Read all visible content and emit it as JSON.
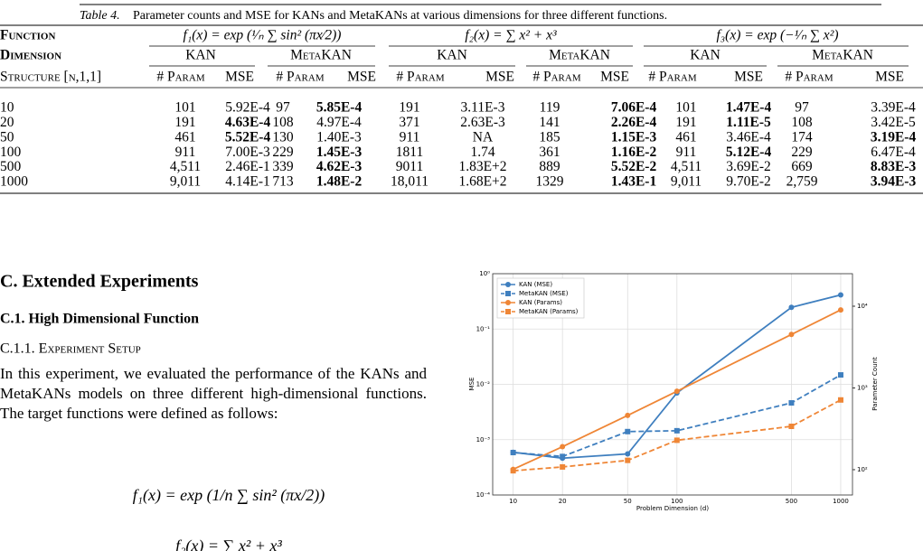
{
  "table": {
    "caption_label": "Table 4.",
    "caption": "Parameter counts and MSE for KANs and MetaKANs at various dimensions for three different functions.",
    "header_functions": [
      "Function",
      "f₁(x) = exp (¹⁄ₙ ∑ sin² (πx⁄2))",
      "f₂(x) = ∑ x² + x³",
      "f₃(x) = exp (−¹⁄ₙ ∑ x²)"
    ],
    "header_models": [
      "Dimension",
      "KAN",
      "MetaKAN",
      "KAN",
      "MetaKAN",
      "KAN",
      "MetaKAN"
    ],
    "header_columns": [
      "Structure [n,1,1]",
      "# Param",
      "MSE",
      "# Param",
      "MSE",
      "# Param",
      "MSE",
      "# Param",
      "MSE",
      "# Param",
      "MSE",
      "# Param",
      "MSE"
    ],
    "rows": [
      [
        "10",
        "101",
        "5.92E-4",
        "97",
        "5.85E-4",
        "191",
        "3.11E-3",
        "119",
        "7.06E-4",
        "101",
        "1.47E-4",
        "97",
        "3.39E-4"
      ],
      [
        "20",
        "191",
        "4.63E-4",
        "108",
        "4.97E-4",
        "371",
        "2.63E-3",
        "141",
        "2.26E-4",
        "191",
        "1.11E-5",
        "108",
        "3.42E-5"
      ],
      [
        "50",
        "461",
        "5.52E-4",
        "130",
        "1.40E-3",
        "911",
        "NA",
        "185",
        "1.15E-3",
        "461",
        "3.46E-4",
        "174",
        "3.19E-4"
      ],
      [
        "100",
        "911",
        "7.00E-3",
        "229",
        "1.45E-3",
        "1811",
        "1.74",
        "361",
        "1.16E-2",
        "911",
        "5.12E-4",
        "229",
        "6.47E-4"
      ],
      [
        "500",
        "4,511",
        "2.46E-1",
        "339",
        "4.62E-3",
        "9011",
        "1.83E+2",
        "889",
        "5.52E-2",
        "4,511",
        "3.69E-2",
        "669",
        "8.83E-3"
      ],
      [
        "1000",
        "9,011",
        "4.14E-1",
        "713",
        "1.48E-2",
        "18,011",
        "1.68E+2",
        "1329",
        "1.43E-1",
        "9,011",
        "9.70E-2",
        "2,759",
        "3.94E-3"
      ]
    ],
    "bold": [
      [
        4,
        8,
        10
      ],
      [
        2,
        8,
        10
      ],
      [
        2,
        8,
        12
      ],
      [
        4,
        8,
        10
      ],
      [
        4,
        8,
        12
      ],
      [
        4,
        8,
        12
      ]
    ]
  },
  "section": {
    "heading": "C. Extended Experiments",
    "subheading": "C.1. High Dimensional Function",
    "subsubheading": "C.1.1. Experiment Setup",
    "paragraph": "In this experiment, we evaluated the performance of the KANs and MetaKANs models on three different high-dimensional functions. The target functions were defined as follows:",
    "equations": [
      "f₁(x) = exp (1/n ∑ sin² (πx/2))",
      "f₂(x) = ∑ x² + x³"
    ]
  },
  "chart_data": {
    "type": "line",
    "xlabel": "Problem Dimension (d)",
    "ylabel": "MSE",
    "y2label": "Parameter Count",
    "x": [
      10,
      20,
      50,
      100,
      500,
      1000
    ],
    "xscale": "log",
    "yscale": "log",
    "y2scale": "log",
    "xlim": [
      7.5,
      1180
    ],
    "xticks": [
      10,
      20,
      50,
      100,
      500,
      1000
    ],
    "ylim": [
      0.0001,
      1
    ],
    "yticks": [
      {
        "value": 0.0001,
        "label": "10⁻⁴"
      },
      {
        "value": 0.001,
        "label": "10⁻³"
      },
      {
        "value": 0.01,
        "label": "10⁻²"
      },
      {
        "value": 0.1,
        "label": "10⁻¹"
      },
      {
        "value": 1,
        "label": "10⁰"
      }
    ],
    "y2lim": [
      49,
      25000
    ],
    "y2ticks": [
      {
        "value": 100,
        "label": "10²"
      },
      {
        "value": 1000,
        "label": "10³"
      },
      {
        "value": 10000,
        "label": "10⁴"
      }
    ],
    "grid": true,
    "legend": "upper left",
    "series": [
      {
        "name": "KAN (MSE)",
        "color": "#3f7fbf",
        "linestyle": "solid",
        "marker": "circle",
        "values": [
          0.000592,
          0.000463,
          0.000552,
          0.007,
          0.246,
          0.414
        ]
      },
      {
        "name": "MetaKAN (MSE)",
        "color": "#3f7fbf",
        "linestyle": "dashed",
        "marker": "square",
        "values": [
          0.000585,
          0.000497,
          0.0014,
          0.00145,
          0.00462,
          0.0148
        ]
      },
      {
        "name": "KAN (Params)",
        "color": "#ef8636",
        "linestyle": "solid",
        "marker": "circle",
        "axis": "y2",
        "values": [
          101,
          191,
          461,
          911,
          4511,
          9011
        ]
      },
      {
        "name": "MetaKAN (Params)",
        "color": "#ef8636",
        "linestyle": "dashed",
        "marker": "square",
        "axis": "y2",
        "values": [
          97,
          108,
          130,
          229,
          339,
          713
        ]
      }
    ]
  }
}
